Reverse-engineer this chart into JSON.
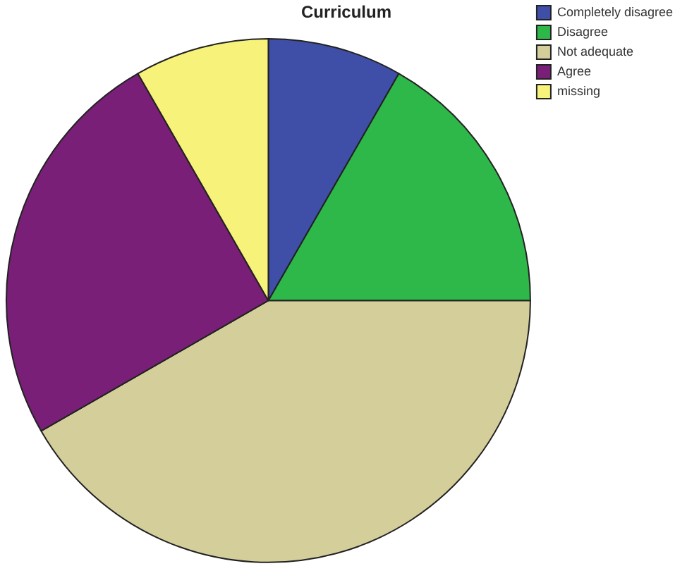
{
  "chart_data": {
    "type": "pie",
    "title": "Curriculum",
    "categories": [
      "Completely disagree",
      "Disagree",
      "Not adequate",
      "Agree",
      "missing"
    ],
    "values": [
      8.3,
      16.7,
      41.7,
      25,
      8.3
    ],
    "colors": [
      "#3f4fa8",
      "#2fb84a",
      "#d4cf9a",
      "#7a1f78",
      "#f7f27a"
    ],
    "legend": "top right"
  }
}
